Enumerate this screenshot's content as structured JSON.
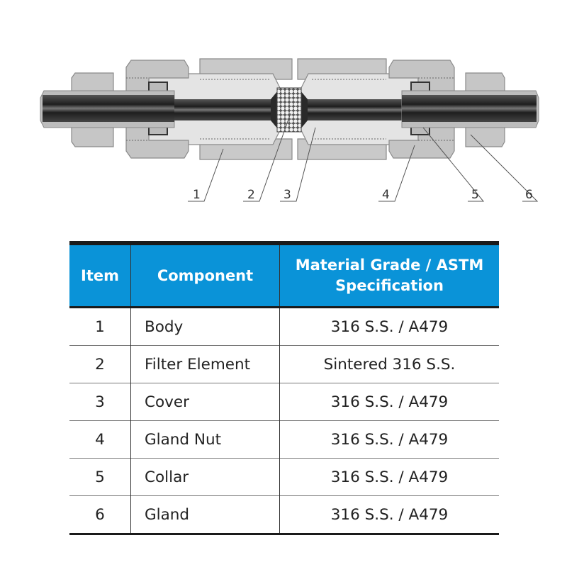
{
  "diagram": {
    "callouts": [
      "1",
      "2",
      "3",
      "4",
      "5",
      "6"
    ]
  },
  "table": {
    "headers": [
      "Item",
      "Component",
      "Material Grade / ASTM Specification"
    ],
    "header_color": "#0a93d8",
    "rows": [
      {
        "item": "1",
        "component": "Body",
        "material": "316 S.S. / A479"
      },
      {
        "item": "2",
        "component": "Filter Element",
        "material": "Sintered 316 S.S."
      },
      {
        "item": "3",
        "component": "Cover",
        "material": "316 S.S. / A479"
      },
      {
        "item": "4",
        "component": "Gland Nut",
        "material": "316 S.S. / A479"
      },
      {
        "item": "5",
        "component": "Collar",
        "material": "316 S.S. / A479"
      },
      {
        "item": "6",
        "component": "Gland",
        "material": "316 S.S. / A479"
      }
    ]
  }
}
